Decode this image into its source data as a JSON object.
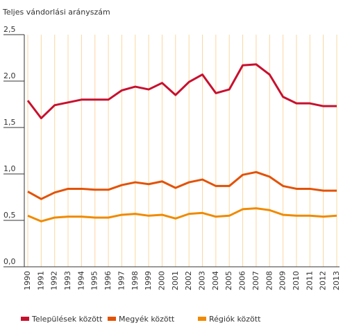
{
  "chart_data": {
    "type": "line",
    "title": "Teljes vándorlási arányszám",
    "categories": [
      "1990",
      "1991",
      "1992",
      "1993",
      "1994",
      "1995",
      "1996",
      "1997",
      "1998",
      "1999",
      "2000",
      "2001",
      "2002",
      "2003",
      "2004",
      "2005",
      "2006",
      "2007",
      "2008",
      "2009",
      "2010",
      "2011",
      "2012",
      "2013"
    ],
    "series": [
      {
        "name": "Települések között",
        "color": "#c8102e",
        "values": [
          1.79,
          1.6,
          1.74,
          1.77,
          1.8,
          1.8,
          1.8,
          1.9,
          1.94,
          1.91,
          1.98,
          1.85,
          1.99,
          2.07,
          1.87,
          1.91,
          2.17,
          2.18,
          2.07,
          1.83,
          1.76,
          1.76,
          1.73,
          1.73
        ]
      },
      {
        "name": "Megyék között",
        "color": "#e35205",
        "values": [
          0.81,
          0.73,
          0.8,
          0.84,
          0.84,
          0.83,
          0.83,
          0.88,
          0.91,
          0.89,
          0.92,
          0.85,
          0.91,
          0.94,
          0.87,
          0.87,
          0.99,
          1.02,
          0.97,
          0.87,
          0.84,
          0.84,
          0.82,
          0.82
        ]
      },
      {
        "name": "Régiók között",
        "color": "#f08a00",
        "values": [
          0.55,
          0.49,
          0.53,
          0.54,
          0.54,
          0.53,
          0.53,
          0.56,
          0.57,
          0.55,
          0.56,
          0.52,
          0.57,
          0.58,
          0.54,
          0.55,
          0.62,
          0.63,
          0.61,
          0.56,
          0.55,
          0.55,
          0.54,
          0.55
        ]
      }
    ],
    "ylim": [
      0,
      2.5
    ],
    "yticks": [
      {
        "value": 0,
        "label": "0,0"
      },
      {
        "value": 0.5,
        "label": "0,5"
      },
      {
        "value": 1,
        "label": "1,0"
      },
      {
        "value": 1.5,
        "label": "1,5"
      },
      {
        "value": 2,
        "label": "2,0"
      },
      {
        "value": 2.5,
        "label": "2,5"
      }
    ],
    "grid": true,
    "grid_color": "#fad7a0",
    "legend": "bottom"
  }
}
